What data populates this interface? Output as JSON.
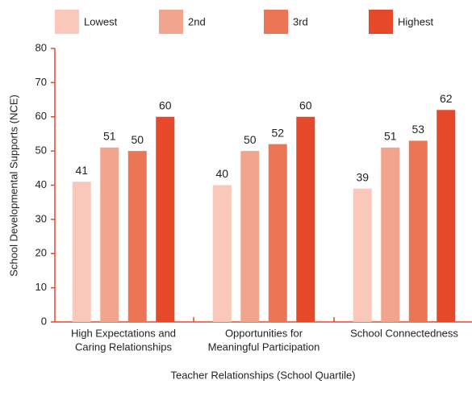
{
  "chart_data": {
    "type": "bar",
    "xlabel": "Teacher Relationships (School Quartile)",
    "ylabel": "School Developmental Supports (NCE)",
    "categories": [
      [
        "High Expectations and",
        "Caring Relationships"
      ],
      [
        "Opportunities for",
        "Meaningful Participation"
      ],
      [
        "School Connectedness"
      ]
    ],
    "series": [
      {
        "name": "Lowest",
        "color": "#f9c8bb",
        "values": [
          41,
          40,
          39
        ]
      },
      {
        "name": "2nd",
        "color": "#f2a58e",
        "values": [
          51,
          50,
          51
        ]
      },
      {
        "name": "3rd",
        "color": "#eb7655",
        "values": [
          50,
          52,
          53
        ]
      },
      {
        "name": "Highest",
        "color": "#e5492a",
        "values": [
          60,
          60,
          62
        ]
      }
    ],
    "ylim": [
      0,
      80
    ],
    "yticks": [
      0,
      10,
      20,
      30,
      40,
      50,
      60,
      70,
      80
    ],
    "legend": "top",
    "axis_color": "#e5492a"
  }
}
